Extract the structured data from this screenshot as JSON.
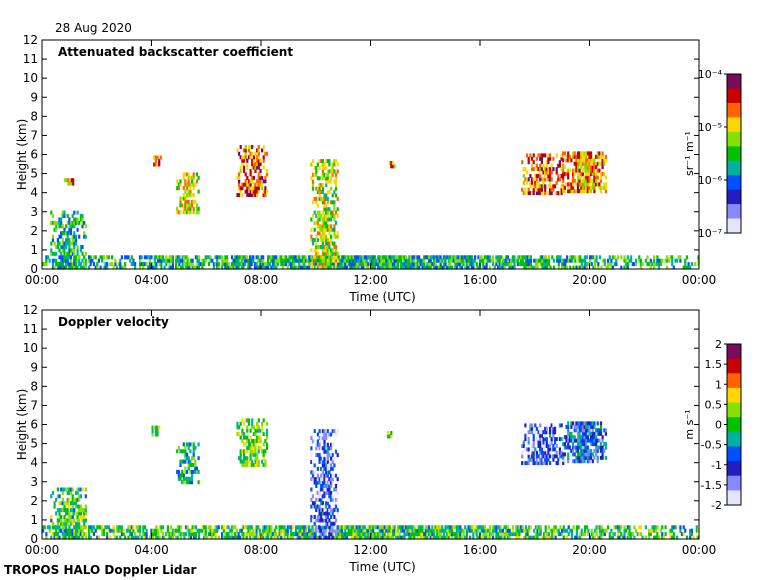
{
  "date_label": "28 Aug 2020",
  "footer": "TROPOS HALO Doppler Lidar",
  "chart_data": [
    {
      "type": "heatmap",
      "title": "Attenuated backscatter coefficient",
      "xlabel": "Time (UTC)",
      "ylabel": "Height (km)",
      "x_ticks": [
        "00:00",
        "04:00",
        "08:00",
        "12:00",
        "16:00",
        "20:00",
        "00:00"
      ],
      "xlim_hours": [
        0,
        24
      ],
      "ylim": [
        0,
        12
      ],
      "y_ticks": [
        0,
        1,
        2,
        3,
        4,
        5,
        6,
        7,
        8,
        9,
        10,
        11,
        12
      ],
      "colorbar": {
        "label": "sr⁻¹ m⁻¹",
        "scale": "log",
        "range": [
          1e-07,
          0.0001
        ],
        "tick_labels": [
          "10⁻⁴",
          "10⁻⁵",
          "10⁻⁶",
          "10⁻⁷"
        ],
        "colormap": [
          "#7a0a5a",
          "#c80000",
          "#ff6400",
          "#ffd700",
          "#88e000",
          "#00c000",
          "#00b0a0",
          "#0050ff",
          "#2020c0",
          "#8888ff",
          "#e4e4ff"
        ]
      },
      "features": [
        {
          "t0": 0.0,
          "t1": 24.0,
          "h0": 0.0,
          "h1": 0.6,
          "level": 0.45
        },
        {
          "t0": 0.3,
          "t1": 1.6,
          "h0": 0.0,
          "h1": 2.9,
          "level": 0.45
        },
        {
          "t0": 0.8,
          "t1": 1.3,
          "h0": 4.4,
          "h1": 4.7,
          "level": 0.7
        },
        {
          "t0": 4.0,
          "t1": 4.3,
          "h0": 5.4,
          "h1": 5.8,
          "level": 0.8
        },
        {
          "t0": 4.9,
          "t1": 5.7,
          "h0": 2.9,
          "h1": 5.0,
          "level": 0.65
        },
        {
          "t0": 7.1,
          "t1": 8.2,
          "h0": 3.8,
          "h1": 6.4,
          "level": 0.8
        },
        {
          "t0": 9.8,
          "t1": 10.8,
          "h0": 0.0,
          "h1": 5.7,
          "level": 0.6
        },
        {
          "t0": 12.6,
          "t1": 12.9,
          "h0": 5.3,
          "h1": 5.5,
          "level": 0.8
        },
        {
          "t0": 17.5,
          "t1": 19.0,
          "h0": 3.9,
          "h1": 6.0,
          "level": 0.8
        },
        {
          "t0": 19.0,
          "t1": 20.6,
          "h0": 4.0,
          "h1": 6.0,
          "level": 0.75
        }
      ]
    },
    {
      "type": "heatmap",
      "title": "Doppler velocity",
      "xlabel": "Time (UTC)",
      "ylabel": "Height (km)",
      "x_ticks": [
        "00:00",
        "04:00",
        "08:00",
        "12:00",
        "16:00",
        "20:00",
        "00:00"
      ],
      "xlim_hours": [
        0,
        24
      ],
      "ylim": [
        0,
        12
      ],
      "y_ticks": [
        0,
        1,
        2,
        3,
        4,
        5,
        6,
        7,
        8,
        9,
        10,
        11,
        12
      ],
      "colorbar": {
        "label": "m s⁻¹",
        "scale": "linear",
        "range": [
          -2,
          2
        ],
        "tick_labels": [
          "2",
          "1.5",
          "1",
          "0.5",
          "0",
          "-0.5",
          "-1",
          "-1.5",
          "-2"
        ],
        "colormap": [
          "#7a0a5a",
          "#c80000",
          "#ff6400",
          "#ffd700",
          "#88e000",
          "#00c000",
          "#00b0a0",
          "#0050ff",
          "#2020c0",
          "#8888ff",
          "#e4e4ff"
        ]
      },
      "features": [
        {
          "t0": 0.0,
          "t1": 24.0,
          "h0": 0.0,
          "h1": 0.6,
          "level": 0.5
        },
        {
          "t0": 0.3,
          "t1": 1.6,
          "h0": 0.0,
          "h1": 2.6,
          "level": 0.5
        },
        {
          "t0": 4.0,
          "t1": 4.3,
          "h0": 5.4,
          "h1": 5.8,
          "level": 0.55
        },
        {
          "t0": 4.9,
          "t1": 5.7,
          "h0": 2.9,
          "h1": 5.0,
          "level": 0.45
        },
        {
          "t0": 7.1,
          "t1": 8.2,
          "h0": 3.8,
          "h1": 6.3,
          "level": 0.55
        },
        {
          "t0": 9.8,
          "t1": 10.8,
          "h0": 0.0,
          "h1": 5.7,
          "level": 0.2
        },
        {
          "t0": 12.6,
          "t1": 12.9,
          "h0": 5.3,
          "h1": 5.5,
          "level": 0.5
        },
        {
          "t0": 17.5,
          "t1": 19.0,
          "h0": 3.9,
          "h1": 6.0,
          "level": 0.2
        },
        {
          "t0": 19.0,
          "t1": 20.6,
          "h0": 4.0,
          "h1": 6.0,
          "level": 0.3
        }
      ]
    }
  ]
}
